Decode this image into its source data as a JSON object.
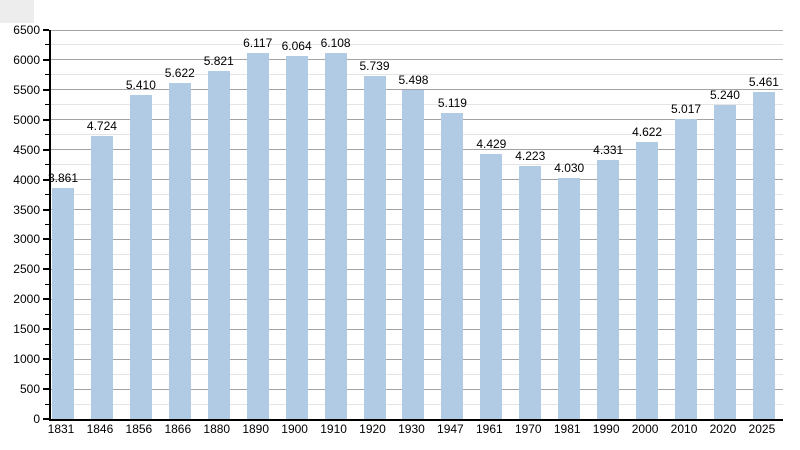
{
  "chart_data": {
    "type": "bar",
    "title": "",
    "xlabel": "",
    "ylabel": "",
    "categories": [
      "1831",
      "1846",
      "1856",
      "1866",
      "1880",
      "1890",
      "1900",
      "1910",
      "1920",
      "1930",
      "1947",
      "1961",
      "1970",
      "1981",
      "1990",
      "2000",
      "2010",
      "2020",
      "2025"
    ],
    "values": [
      3861,
      4724,
      5410,
      5622,
      5821,
      6117,
      6064,
      6108,
      5739,
      5498,
      5119,
      4429,
      4223,
      4030,
      4331,
      4622,
      5017,
      5240,
      5461
    ],
    "value_labels": [
      "3.861",
      "4.724",
      "5.410",
      "5.622",
      "5.821",
      "6.117",
      "6.064",
      "6.108",
      "5.739",
      "5.498",
      "5.119",
      "4.429",
      "4.223",
      "4.030",
      "4.331",
      "4.622",
      "5.017",
      "5.240",
      "5.461"
    ],
    "y_tick_labels": [
      "0",
      "500",
      "1000",
      "1500",
      "2000",
      "2500",
      "3000",
      "3500",
      "4000",
      "4500",
      "5000",
      "5500",
      "6000",
      "6500"
    ],
    "ylim": [
      0,
      6500
    ],
    "y_major_step": 500,
    "y_minor_step": 250,
    "grid": "major-and-minor horizontal",
    "legend": "none",
    "bar_labels_position": "above-bars"
  },
  "colors": {
    "bar": "#b2cbe4",
    "grid_major": "#a3a3a3",
    "grid_minor": "#e4e4e4",
    "axis": "#000000",
    "background": "#ffffff",
    "corner_box": "#ededed"
  }
}
